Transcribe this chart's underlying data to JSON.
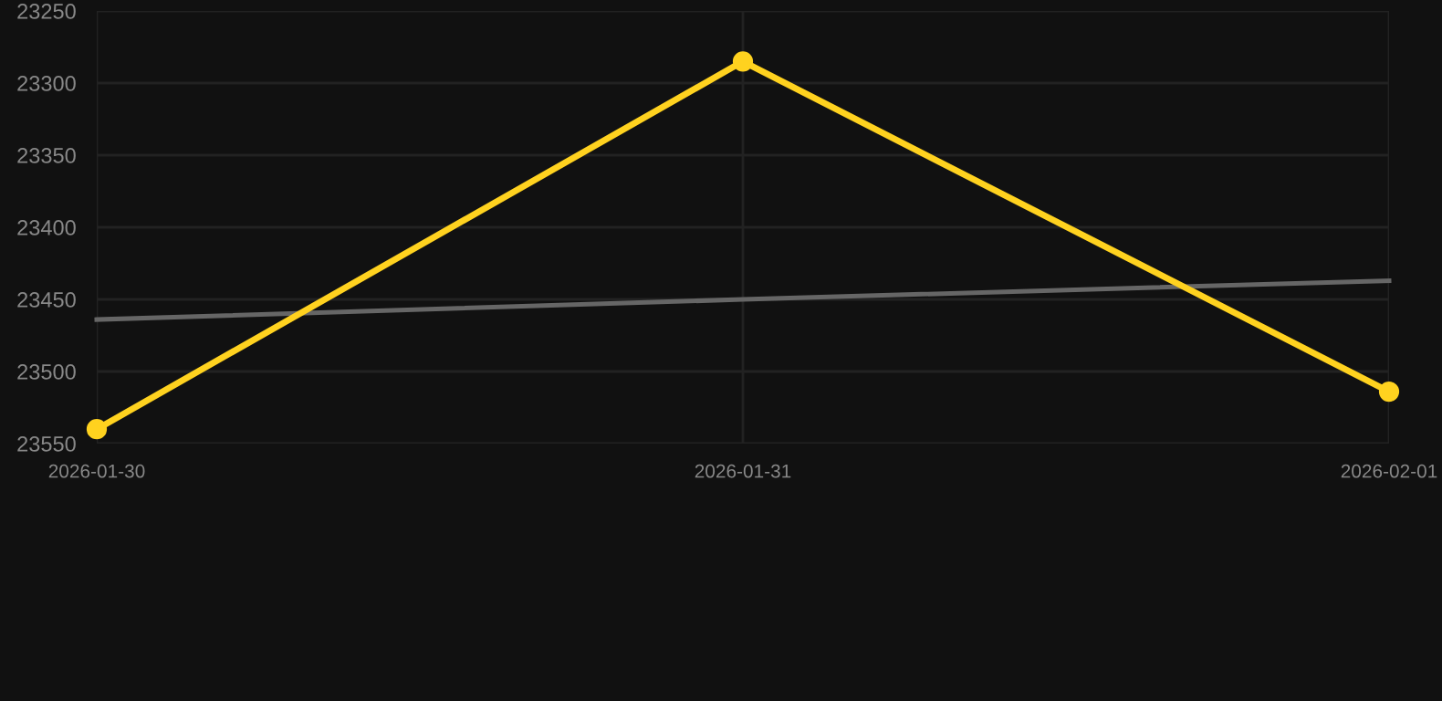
{
  "chart_data": {
    "type": "line",
    "categories": [
      "2026-01-30",
      "2026-01-31",
      "2026-02-01"
    ],
    "series": [
      {
        "color": "#ffd21f",
        "values": [
          23540,
          23285,
          23514
        ],
        "marker": "circle"
      },
      {
        "type": "line",
        "color": "#666666",
        "values": [
          23464,
          23450,
          23437
        ],
        "marker": "none"
      }
    ],
    "ylim": [
      23550,
      23250
    ],
    "yticks": [
      23250,
      23300,
      23350,
      23400,
      23450,
      23500,
      23550
    ],
    "grid": true,
    "line_style": "solid"
  }
}
